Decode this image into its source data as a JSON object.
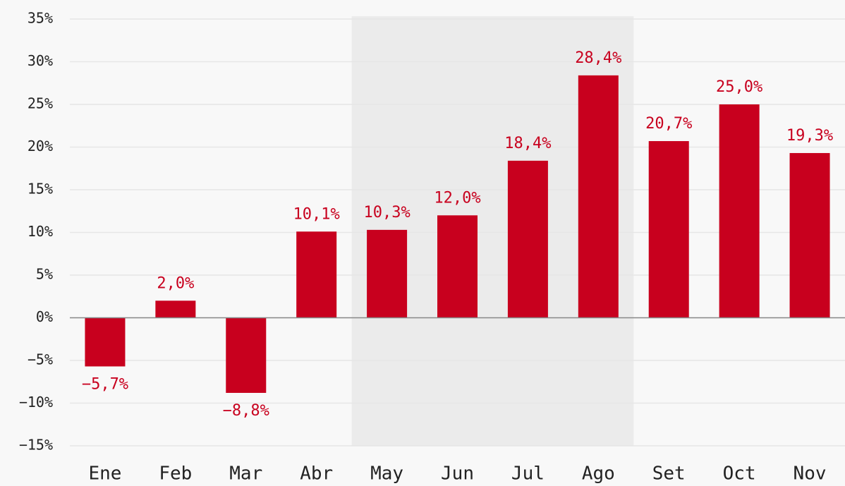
{
  "chart_data": {
    "type": "bar",
    "categories": [
      "Ene",
      "Feb",
      "Mar",
      "Abr",
      "May",
      "Jun",
      "Jul",
      "Ago",
      "Set",
      "Oct",
      "Nov"
    ],
    "values": [
      -5.7,
      2.0,
      -8.8,
      10.1,
      10.3,
      12.0,
      18.4,
      28.4,
      20.7,
      25.0,
      19.3
    ],
    "value_labels": [
      "−5,7%",
      "2,0%",
      "−8,8%",
      "10,1%",
      "10,3%",
      "12,0%",
      "18,4%",
      "28,4%",
      "20,7%",
      "25,0%",
      "19,3%"
    ],
    "color": "#c8001e",
    "ylim": [
      -15,
      35
    ],
    "yticks": [
      {
        "value": -15,
        "label": "−15%"
      },
      {
        "value": -10,
        "label": "−10%"
      },
      {
        "value": -5,
        "label": "−5%"
      },
      {
        "value": 0,
        "label": "0%"
      },
      {
        "value": 5,
        "label": "5%"
      },
      {
        "value": 10,
        "label": "10%"
      },
      {
        "value": 15,
        "label": "15%"
      },
      {
        "value": 20,
        "label": "20%"
      },
      {
        "value": 25,
        "label": "25%"
      },
      {
        "value": 30,
        "label": "30%"
      },
      {
        "value": 35,
        "label": "35%"
      }
    ],
    "grid": true,
    "shaded": [
      4,
      7
    ]
  }
}
